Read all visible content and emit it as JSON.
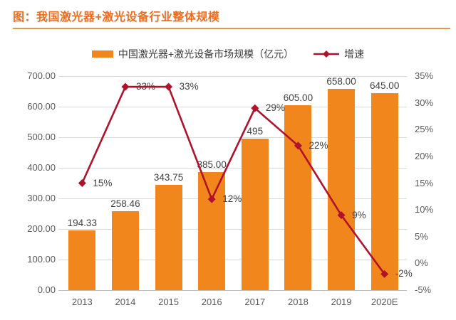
{
  "header": {
    "title": "图：我国激光器+激光设备行业整体规模"
  },
  "legend": {
    "bar_label": "中国激光器+激光设备市场规模（亿元）",
    "line_label": "增速"
  },
  "colors": {
    "bar": "#F0861C",
    "line": "#B1122B",
    "title": "#ED6D1F",
    "underline": "#E09A4E",
    "axis_text": "#595959",
    "gridline": "#D9D9D9",
    "baseline": "#BFBFBF",
    "value_text": "#404040"
  },
  "chart_data": {
    "type": "bar",
    "subtype": "bar+line combo, dual axis",
    "title": "图：我国激光器+激光设备行业整体规模",
    "categories": [
      "2013",
      "2014",
      "2015",
      "2016",
      "2017",
      "2018",
      "2019",
      "2020E"
    ],
    "series": [
      {
        "name": "中国激光器+激光设备市场规模（亿元）",
        "type": "bar",
        "axis": "left",
        "values": [
          194.33,
          258.46,
          343.75,
          385.0,
          495,
          605.0,
          658.0,
          645.0
        ],
        "labels": [
          "194.33",
          "258.46",
          "343.75",
          "385.00",
          "495",
          "605.00",
          "658.00",
          "645.00"
        ]
      },
      {
        "name": "增速",
        "type": "line",
        "axis": "right",
        "marker": "diamond",
        "values": [
          15,
          33,
          33,
          12,
          29,
          22,
          9,
          -2
        ],
        "labels": [
          "15%",
          "33%",
          "33%",
          "12%",
          "29%",
          "22%",
          "9%",
          "-2%"
        ]
      }
    ],
    "left_axis": {
      "min": 0,
      "max": 700,
      "step": 100,
      "tick_labels": [
        "700.00",
        "600.00",
        "500.00",
        "400.00",
        "300.00",
        "200.00",
        "100.00",
        "0.00"
      ]
    },
    "right_axis": {
      "min": -5,
      "max": 35,
      "step": 5,
      "tick_labels": [
        "35%",
        "30%",
        "25%",
        "20%",
        "15%",
        "10%",
        "5%",
        "0%",
        "-5%"
      ]
    },
    "grid": true,
    "legend_position": "top"
  }
}
